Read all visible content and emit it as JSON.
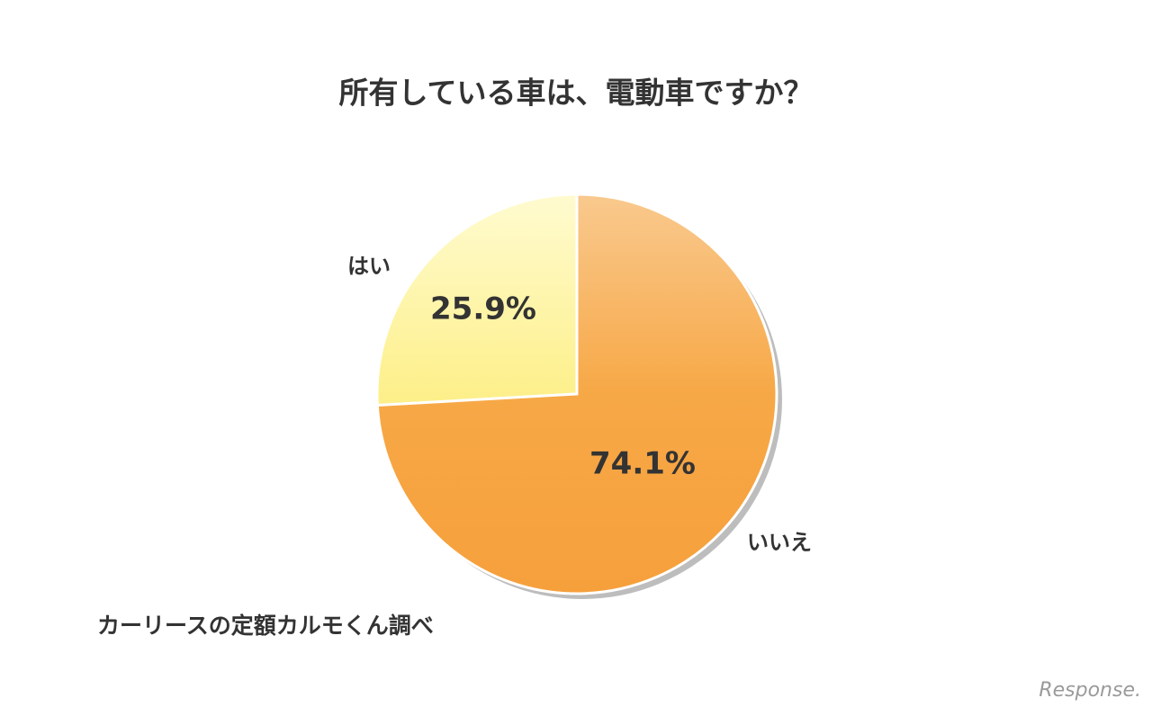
{
  "chart_data": {
    "type": "pie",
    "title": "所有している車は、電動車ですか？",
    "categories": [
      "はい",
      "いいえ"
    ],
    "values": [
      25.9,
      74.1
    ],
    "value_labels": [
      "25.9%",
      "74.1%"
    ],
    "colors": [
      "#fdf08f",
      "#f7a440"
    ],
    "source": "カーリースの定額カルモくん調べ",
    "watermark": "Response."
  }
}
